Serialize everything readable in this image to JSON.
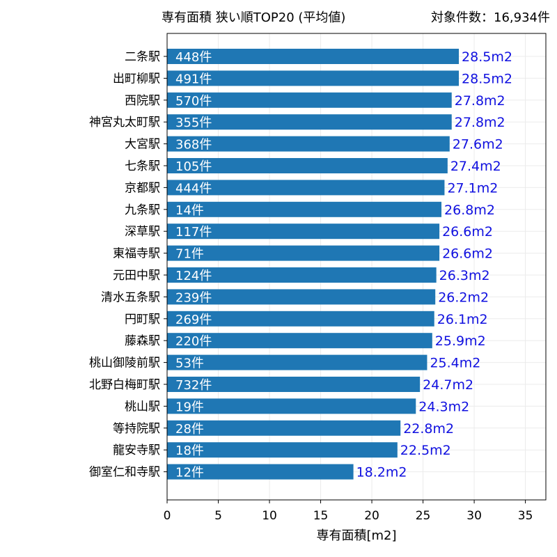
{
  "chart_data": {
    "type": "bar",
    "orientation": "horizontal",
    "title": "専有面積 狭い順TOP20 (平均値)",
    "title_right": "対象件数：16,934件",
    "xlabel": "専有面積[m2]",
    "ylabel": "",
    "xlim": [
      0,
      37
    ],
    "xticks": [
      0,
      5,
      10,
      15,
      20,
      25,
      30,
      35
    ],
    "grid": true,
    "legend": "none",
    "categories": [
      "二条駅",
      "出町柳駅",
      "西院駅",
      "神宮丸太町駅",
      "大宮駅",
      "七条駅",
      "京都駅",
      "九条駅",
      "深草駅",
      "東福寺駅",
      "元田中駅",
      "清水五条駅",
      "円町駅",
      "藤森駅",
      "桃山御陵前駅",
      "北野白梅町駅",
      "桃山駅",
      "等持院駅",
      "龍安寺駅",
      "御室仁和寺駅"
    ],
    "values": [
      28.5,
      28.5,
      27.8,
      27.8,
      27.6,
      27.4,
      27.1,
      26.8,
      26.6,
      26.6,
      26.3,
      26.2,
      26.1,
      25.9,
      25.4,
      24.7,
      24.3,
      22.8,
      22.5,
      18.2
    ],
    "value_labels": [
      "28.5m2",
      "28.5m2",
      "27.8m2",
      "27.8m2",
      "27.6m2",
      "27.4m2",
      "27.1m2",
      "26.8m2",
      "26.6m2",
      "26.6m2",
      "26.3m2",
      "26.2m2",
      "26.1m2",
      "25.9m2",
      "25.4m2",
      "24.7m2",
      "24.3m2",
      "22.8m2",
      "22.5m2",
      "18.2m2"
    ],
    "count_labels": [
      "448件",
      "491件",
      "570件",
      "355件",
      "368件",
      "105件",
      "444件",
      "14件",
      "117件",
      "71件",
      "124件",
      "239件",
      "269件",
      "220件",
      "53件",
      "732件",
      "19件",
      "28件",
      "18件",
      "12件"
    ]
  },
  "colors": {
    "bar": "#1f77b4",
    "value_label": "#1010e0",
    "count_label": "#ffffff",
    "grid": "#ebebeb",
    "axis": "#000000"
  }
}
